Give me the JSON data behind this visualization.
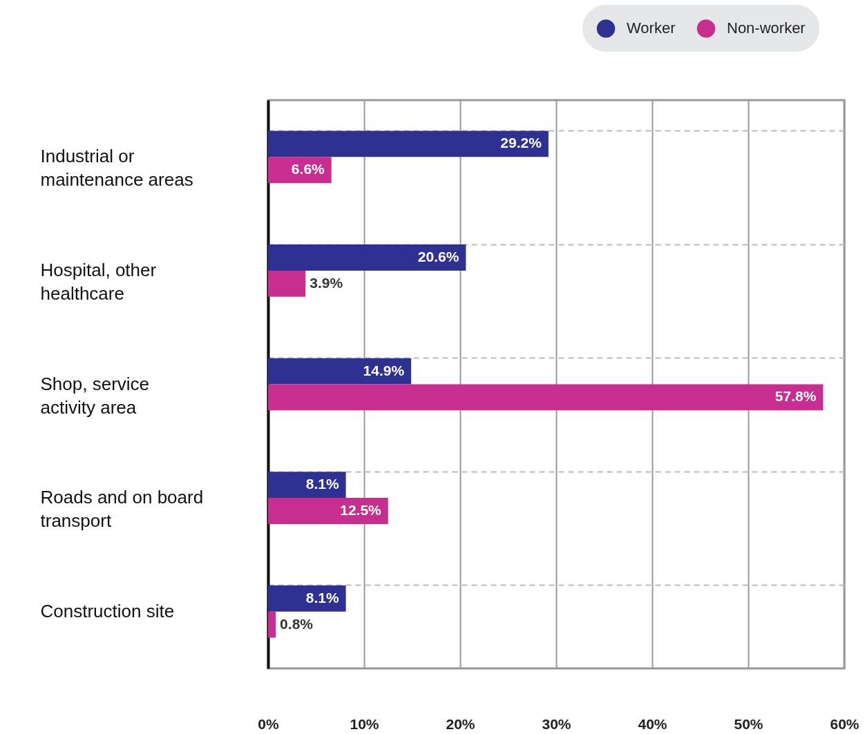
{
  "chart_data": {
    "type": "bar",
    "orientation": "horizontal",
    "categories": [
      "Industrial or maintenance areas",
      "Hospital, other healthcare",
      "Shop, service activity area",
      "Roads and on board transport",
      "Construction site"
    ],
    "series": [
      {
        "name": "Worker",
        "color": "#2e3192",
        "values": [
          29.2,
          20.6,
          14.9,
          8.1,
          8.1
        ],
        "value_labels": [
          "29.2%",
          "20.6%",
          "14.9%",
          "8.1%",
          "8.1%"
        ]
      },
      {
        "name": "Non-worker",
        "color": "#c72e8f",
        "values": [
          6.6,
          3.9,
          57.8,
          12.5,
          0.8
        ],
        "value_labels": [
          "6.6%",
          "3.9%",
          "57.8%",
          "12.5%",
          "0.8%"
        ]
      }
    ],
    "xlim": [
      0,
      60
    ],
    "xticks": [
      {
        "value": 0,
        "label": "0%"
      },
      {
        "value": 10,
        "label": "10%"
      },
      {
        "value": 20,
        "label": "20%"
      },
      {
        "value": 30,
        "label": "30%"
      },
      {
        "value": 40,
        "label": "40%"
      },
      {
        "value": 50,
        "label": "50%"
      },
      {
        "value": 60,
        "label": "60%"
      }
    ],
    "grid": true,
    "legend": "top right"
  }
}
